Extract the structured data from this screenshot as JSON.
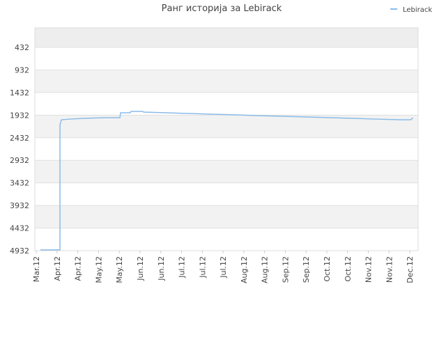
{
  "chart_data": {
    "type": "line",
    "title": "Ранг историја за Lebirack",
    "series": [
      {
        "name": "Lebirack",
        "color": "#8bbbe8",
        "x": [
          0.2,
          1.14,
          1.14,
          1.17,
          1.21,
          1.61,
          2.28,
          3.36,
          4.03,
          4.06,
          4.53,
          4.56,
          5.13,
          5.17,
          6.31,
          7.38,
          8.49,
          9.66,
          10.74,
          11.88,
          13.02,
          14.19,
          15.3,
          16.38,
          17.55,
          18.05,
          18.15
        ],
        "values": [
          4915,
          4915,
          2158,
          2097,
          2035,
          2020,
          2004,
          1989,
          1989,
          1881,
          1881,
          1850,
          1850,
          1865,
          1881,
          1896,
          1912,
          1927,
          1943,
          1958,
          1973,
          1989,
          2004,
          2020,
          2035,
          2035,
          1989
        ]
      }
    ],
    "ylim": [
      4932,
      0
    ],
    "yticks": [
      432,
      932,
      1432,
      1932,
      2432,
      2932,
      3432,
      3932,
      4432,
      4932
    ],
    "xlim": [
      -0.07,
      18.4
    ],
    "xticks": [
      {
        "value": 0,
        "label": "Mar.12"
      },
      {
        "value": 1,
        "label": "Apr.12"
      },
      {
        "value": 2,
        "label": "Apr.12"
      },
      {
        "value": 3,
        "label": "May.12"
      },
      {
        "value": 4,
        "label": "May.12"
      },
      {
        "value": 5,
        "label": "Jun.12"
      },
      {
        "value": 6,
        "label": "Jun.12"
      },
      {
        "value": 7,
        "label": "Jul.12"
      },
      {
        "value": 8,
        "label": "Jul.12"
      },
      {
        "value": 9,
        "label": "Jul.12"
      },
      {
        "value": 10,
        "label": "Aug.12"
      },
      {
        "value": 11,
        "label": "Aug.12"
      },
      {
        "value": 12,
        "label": "Sep.12"
      },
      {
        "value": 13,
        "label": "Sep.12"
      },
      {
        "value": 14,
        "label": "Oct.12"
      },
      {
        "value": 15,
        "label": "Oct.12"
      },
      {
        "value": 16,
        "label": "Nov.12"
      },
      {
        "value": 17,
        "label": "Nov.12"
      },
      {
        "value": 18,
        "label": "Dec.12"
      }
    ],
    "grid": true,
    "legend": "top-right"
  }
}
